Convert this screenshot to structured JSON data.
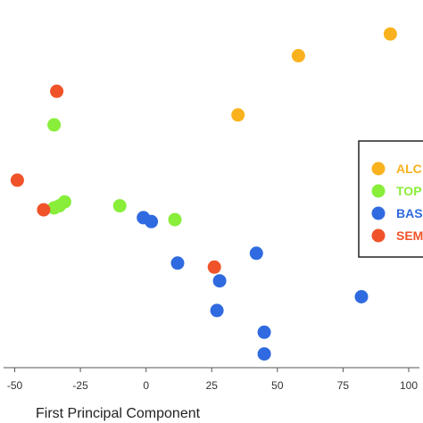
{
  "chart_data": {
    "type": "scatter",
    "title": "",
    "xlabel": "First Principal Component",
    "ylabel": "",
    "xlim": [
      -55,
      102
    ],
    "ylim": [
      -65,
      95
    ],
    "x_ticks": [
      -50,
      -25,
      0,
      25,
      50,
      75,
      100
    ],
    "x_tick_labels": [
      "-50",
      "-25",
      "0",
      "25",
      "50",
      "75",
      "100"
    ],
    "grid": false,
    "legend_position": "right",
    "series": [
      {
        "name": "ALC",
        "color": "#F9B21E",
        "x": [
          93,
          58,
          35
        ],
        "y": [
          89,
          78,
          48
        ]
      },
      {
        "name": "TOP",
        "color": "#88EE3A",
        "x": [
          -35,
          -31,
          -35,
          -33,
          -10,
          11
        ],
        "y": [
          43,
          4,
          1,
          2,
          2,
          -5
        ]
      },
      {
        "name": "BAS",
        "color": "#2F6AE0",
        "x": [
          -1,
          2,
          12,
          42,
          28,
          82,
          27,
          45,
          45
        ],
        "y": [
          -4,
          -6,
          -27,
          -22,
          -36,
          -44,
          -51,
          -62,
          -73
        ]
      },
      {
        "name": "SEM",
        "color": "#F0532A",
        "x": [
          -34,
          -49,
          -39,
          26
        ],
        "y": [
          60,
          15,
          0,
          -29
        ]
      }
    ]
  }
}
